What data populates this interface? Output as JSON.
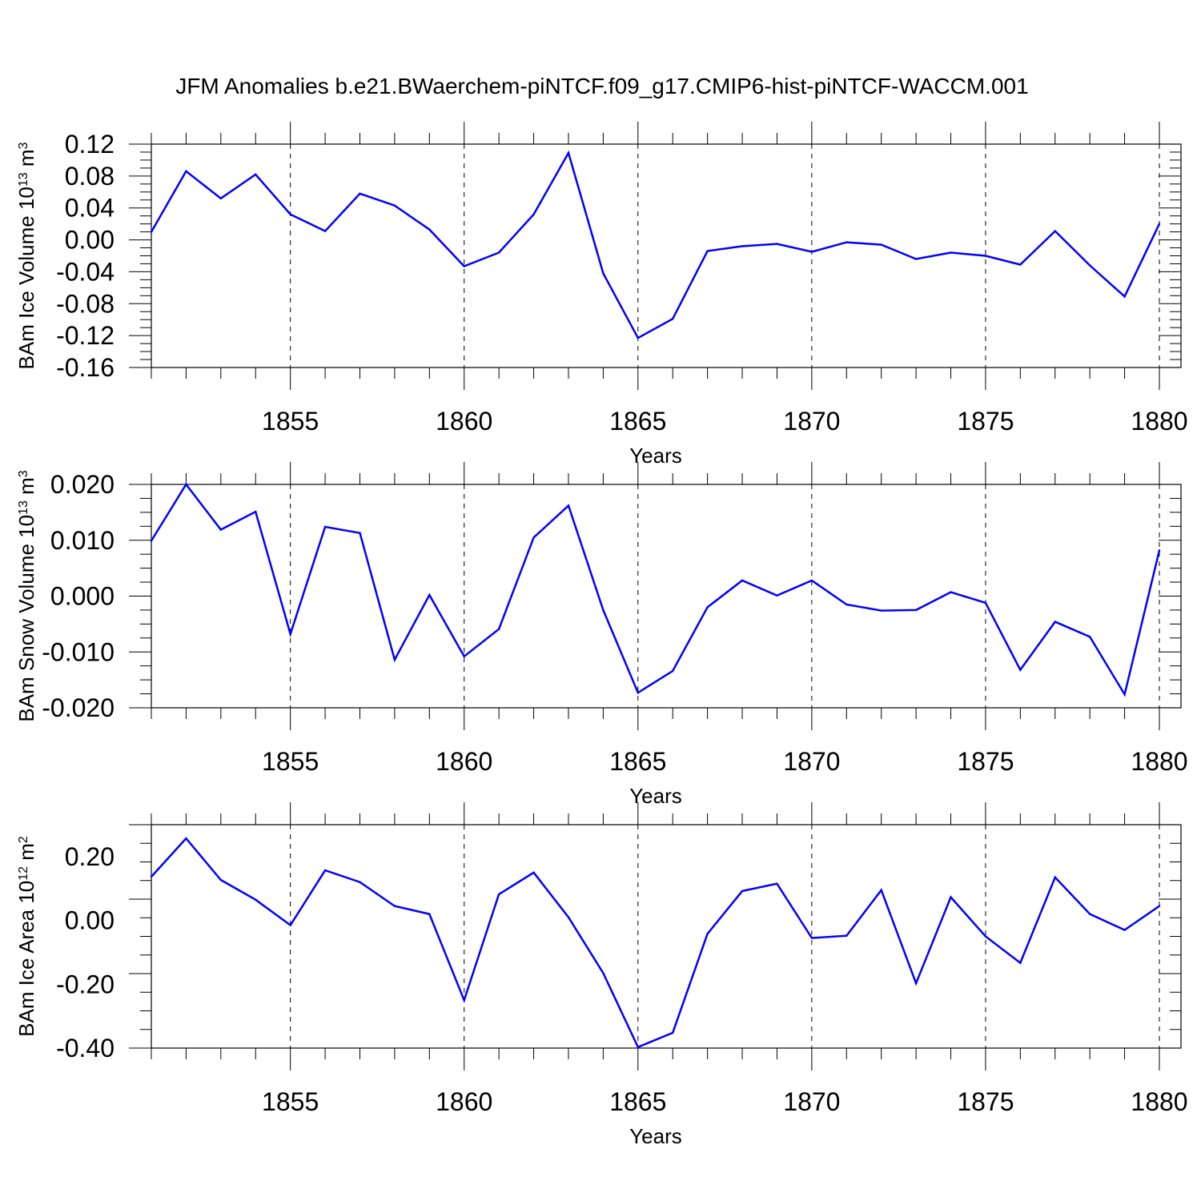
{
  "title": "JFM Anomalies b.e21.BWaerchem-piNTCF.f09_g17.CMIP6-hist-piNTCF-WACCM.001",
  "chart_data": [
    {
      "type": "line",
      "ylabel": "BAm Ice Volume 10",
      "ylabel_exp": "13",
      "ylabel_unit": " m",
      "ylabel_unit_exp": "3",
      "xlabel": "Years",
      "xlim": [
        1851,
        1880
      ],
      "ylim": [
        -0.16,
        0.12
      ],
      "yticks": [
        0.12,
        0.08,
        0.04,
        0.0,
        -0.04,
        -0.08,
        -0.12,
        -0.16
      ],
      "ytick_labels": [
        "0.12",
        "0.08",
        "0.04",
        "0.00",
        "-0.04",
        "-0.08",
        "-0.12",
        "-0.16"
      ],
      "xticks": [
        1855,
        1860,
        1865,
        1870,
        1875,
        1880
      ],
      "xtick_labels": [
        "1855",
        "1860",
        "1865",
        "1870",
        "1875",
        "1880"
      ],
      "line_color": "#0000ff",
      "x": [
        1851,
        1852,
        1853,
        1854,
        1855,
        1856,
        1857,
        1858,
        1859,
        1860,
        1861,
        1862,
        1863,
        1864,
        1865,
        1866,
        1867,
        1868,
        1869,
        1870,
        1871,
        1872,
        1873,
        1874,
        1875,
        1876,
        1877,
        1878,
        1879,
        1880
      ],
      "values": [
        0.01,
        0.086,
        0.052,
        0.082,
        0.032,
        0.011,
        0.058,
        0.043,
        0.013,
        -0.033,
        -0.016,
        0.032,
        0.109,
        -0.042,
        -0.123,
        -0.099,
        -0.014,
        -0.008,
        -0.005,
        -0.015,
        -0.003,
        -0.006,
        -0.024,
        -0.016,
        -0.02,
        -0.031,
        0.011,
        -0.032,
        -0.071,
        0.02
      ]
    },
    {
      "type": "line",
      "ylabel": "BAm Snow Volume 10",
      "ylabel_exp": "13",
      "ylabel_unit": " m",
      "ylabel_unit_exp": "3",
      "xlabel": "Years",
      "xlim": [
        1851,
        1880
      ],
      "ylim": [
        -0.02,
        0.02
      ],
      "yticks": [
        0.02,
        0.01,
        0.0,
        -0.01,
        -0.02
      ],
      "ytick_labels": [
        "0.020",
        "0.010",
        "0.000",
        "-0.010",
        "-0.020"
      ],
      "xticks": [
        1855,
        1860,
        1865,
        1870,
        1875,
        1880
      ],
      "xtick_labels": [
        "1855",
        "1860",
        "1865",
        "1870",
        "1875",
        "1880"
      ],
      "line_color": "#0000ff",
      "x": [
        1851,
        1852,
        1853,
        1854,
        1855,
        1856,
        1857,
        1858,
        1859,
        1860,
        1861,
        1862,
        1863,
        1864,
        1865,
        1866,
        1867,
        1868,
        1869,
        1870,
        1871,
        1872,
        1873,
        1874,
        1875,
        1876,
        1877,
        1878,
        1879,
        1880
      ],
      "values": [
        0.0099,
        0.02,
        0.0119,
        0.0151,
        -0.0068,
        0.0124,
        0.0113,
        -0.0114,
        0.0002,
        -0.0108,
        -0.0059,
        0.0105,
        0.0162,
        -0.0025,
        -0.0173,
        -0.0134,
        -0.002,
        0.0028,
        0.0001,
        0.0028,
        -0.0015,
        -0.0026,
        -0.0025,
        0.0007,
        -0.0012,
        -0.0132,
        -0.0046,
        -0.0073,
        -0.0176,
        0.0082
      ]
    },
    {
      "type": "line",
      "ylabel": "BAm Ice Area 10",
      "ylabel_exp": "12",
      "ylabel_unit": " m",
      "ylabel_unit_exp": "2",
      "xlabel": "Years",
      "xlim": [
        1851,
        1880
      ],
      "ylim": [
        -0.4,
        0.3
      ],
      "yticks": [
        0.2,
        0.0,
        -0.2,
        -0.4
      ],
      "ytick_labels": [
        "0.20",
        "0.00",
        "-0.20",
        "-0.40"
      ],
      "xticks": [
        1855,
        1860,
        1865,
        1870,
        1875,
        1880
      ],
      "xtick_labels": [
        "1855",
        "1860",
        "1865",
        "1870",
        "1875",
        "1880"
      ],
      "line_color": "#0000ff",
      "x": [
        1851,
        1852,
        1853,
        1854,
        1855,
        1856,
        1857,
        1858,
        1859,
        1860,
        1861,
        1862,
        1863,
        1864,
        1865,
        1866,
        1867,
        1868,
        1869,
        1870,
        1871,
        1872,
        1873,
        1874,
        1875,
        1876,
        1877,
        1878,
        1879,
        1880
      ],
      "values": [
        0.137,
        0.257,
        0.127,
        0.065,
        -0.015,
        0.157,
        0.12,
        0.045,
        0.02,
        -0.25,
        0.082,
        0.15,
        0.01,
        -0.165,
        -0.397,
        -0.352,
        -0.042,
        0.092,
        0.115,
        -0.055,
        -0.048,
        0.095,
        -0.197,
        0.073,
        -0.05,
        -0.133,
        0.135,
        0.02,
        -0.03,
        0.045
      ]
    }
  ]
}
